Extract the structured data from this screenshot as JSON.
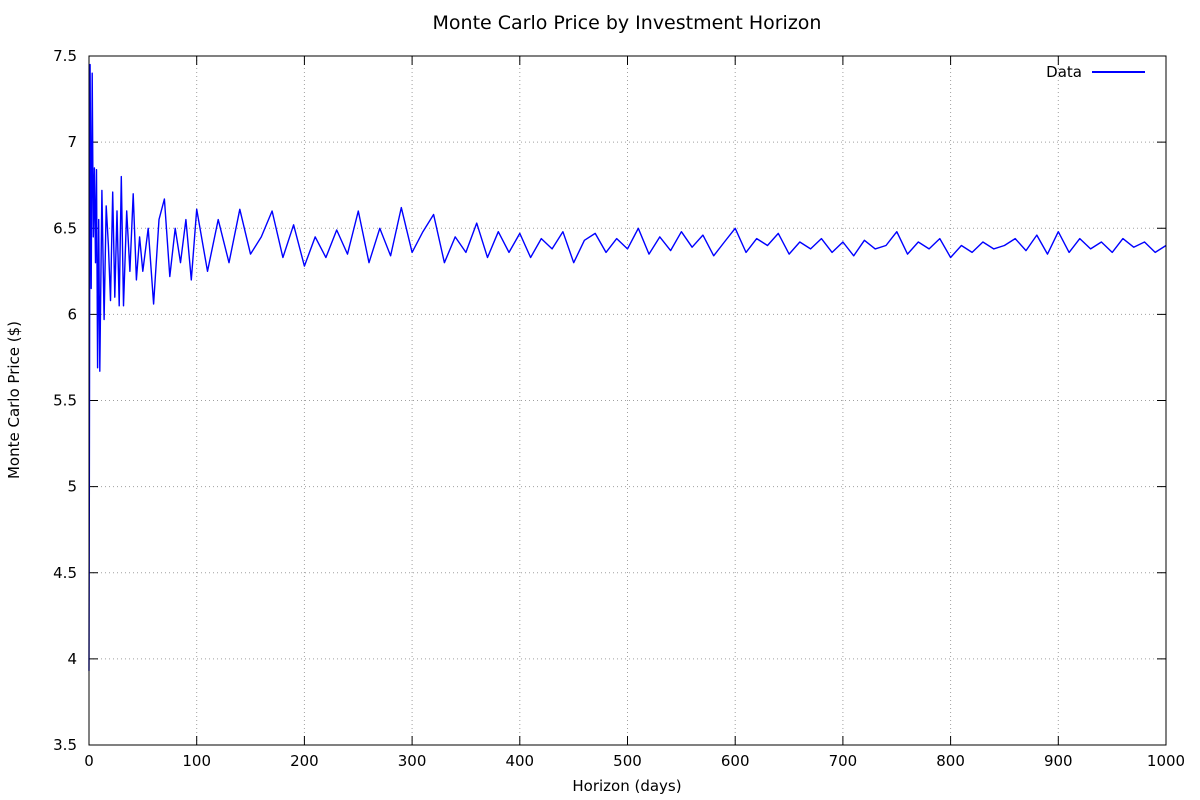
{
  "chart_data": {
    "type": "line",
    "title": "Monte Carlo Price by Investment Horizon",
    "xlabel": "Horizon (days)",
    "ylabel": "Monte Carlo Price ($)",
    "xlim": [
      0,
      1000
    ],
    "ylim": [
      3.5,
      7.5
    ],
    "xticks": [
      0,
      100,
      200,
      300,
      400,
      500,
      600,
      700,
      800,
      900,
      1000
    ],
    "yticks": [
      3.5,
      4,
      4.5,
      5,
      5.5,
      6,
      6.5,
      7,
      7.5
    ],
    "grid": true,
    "legend": "top-right",
    "series": [
      {
        "name": "Data",
        "color": "#0000ff",
        "x": [
          0,
          1,
          2,
          3,
          4,
          5,
          6,
          7,
          8,
          9,
          10,
          12,
          14,
          16,
          18,
          20,
          22,
          24,
          26,
          28,
          30,
          32,
          35,
          38,
          41,
          44,
          47,
          50,
          55,
          60,
          65,
          70,
          75,
          80,
          85,
          90,
          95,
          100,
          110,
          120,
          130,
          140,
          150,
          160,
          170,
          180,
          190,
          200,
          210,
          220,
          230,
          240,
          250,
          260,
          270,
          280,
          290,
          300,
          310,
          320,
          330,
          340,
          350,
          360,
          370,
          380,
          390,
          400,
          410,
          420,
          430,
          440,
          450,
          460,
          470,
          480,
          490,
          500,
          510,
          520,
          530,
          540,
          550,
          560,
          570,
          580,
          590,
          600,
          610,
          620,
          630,
          640,
          650,
          660,
          670,
          680,
          690,
          700,
          710,
          720,
          730,
          740,
          750,
          760,
          770,
          780,
          790,
          800,
          810,
          820,
          830,
          840,
          850,
          860,
          870,
          880,
          890,
          900,
          910,
          920,
          930,
          940,
          950,
          960,
          970,
          980,
          990,
          1000
        ],
        "values": [
          3.93,
          7.45,
          6.15,
          7.4,
          6.45,
          6.85,
          6.3,
          6.84,
          5.69,
          6.55,
          5.67,
          6.72,
          5.97,
          6.63,
          6.4,
          6.08,
          6.71,
          6.1,
          6.6,
          6.05,
          6.8,
          6.05,
          6.6,
          6.25,
          6.7,
          6.2,
          6.45,
          6.25,
          6.5,
          6.06,
          6.55,
          6.67,
          6.22,
          6.5,
          6.3,
          6.55,
          6.2,
          6.61,
          6.25,
          6.55,
          6.3,
          6.61,
          6.35,
          6.45,
          6.6,
          6.33,
          6.52,
          6.28,
          6.45,
          6.33,
          6.49,
          6.35,
          6.6,
          6.3,
          6.5,
          6.34,
          6.62,
          6.36,
          6.48,
          6.58,
          6.3,
          6.45,
          6.36,
          6.53,
          6.33,
          6.48,
          6.36,
          6.47,
          6.33,
          6.44,
          6.38,
          6.48,
          6.3,
          6.43,
          6.47,
          6.36,
          6.44,
          6.38,
          6.5,
          6.35,
          6.45,
          6.37,
          6.48,
          6.39,
          6.46,
          6.34,
          6.42,
          6.5,
          6.36,
          6.44,
          6.4,
          6.47,
          6.35,
          6.42,
          6.38,
          6.44,
          6.36,
          6.42,
          6.34,
          6.43,
          6.38,
          6.4,
          6.48,
          6.35,
          6.42,
          6.38,
          6.44,
          6.33,
          6.4,
          6.36,
          6.42,
          6.38,
          6.4,
          6.44,
          6.37,
          6.46,
          6.35,
          6.48,
          6.36,
          6.44,
          6.38,
          6.42,
          6.36,
          6.44,
          6.39,
          6.42,
          6.36,
          6.4
        ]
      }
    ]
  }
}
